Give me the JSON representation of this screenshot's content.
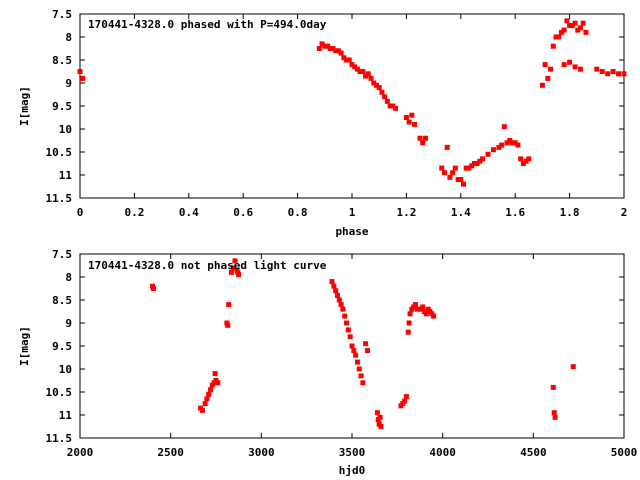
{
  "chart_data": [
    {
      "type": "scatter",
      "title": "170441-4328.0 phased with P=494.0day",
      "xlabel": "phase",
      "ylabel": "I[mag]",
      "xlim": [
        0,
        2
      ],
      "ylim": [
        7.5,
        11.5
      ],
      "y_inverted": true,
      "x_ticks": [
        0,
        0.2,
        0.4,
        0.6,
        0.8,
        1,
        1.2,
        1.4,
        1.6,
        1.8,
        2
      ],
      "x_tick_labels": [
        "0",
        "0.2",
        "0.4",
        "0.6",
        "0.8",
        "1",
        "1.2",
        "1.4",
        "1.6",
        "1.8",
        "2"
      ],
      "y_ticks": [
        7.5,
        8,
        8.5,
        9,
        9.5,
        10,
        10.5,
        11,
        11.5
      ],
      "y_tick_labels": [
        "7.5",
        "8",
        "8.5",
        "9",
        "9.5",
        "10",
        "10.5",
        "11",
        "11.5"
      ],
      "grid": false,
      "marker_color": "#ff0000",
      "series": [
        {
          "x": [
            0.0,
            0.01,
            0.88,
            0.89,
            0.9,
            0.91,
            0.92,
            0.93,
            0.94,
            0.95,
            0.96,
            0.97,
            0.98,
            0.99,
            1.0,
            1.01,
            1.02,
            1.03,
            1.04,
            1.05,
            1.06,
            1.07,
            1.08,
            1.09,
            1.1,
            1.11,
            1.12,
            1.13,
            1.14,
            1.15,
            1.16,
            1.2,
            1.21,
            1.22,
            1.23,
            1.25,
            1.26,
            1.27,
            1.33,
            1.34,
            1.35,
            1.36,
            1.37,
            1.38,
            1.39,
            1.4,
            1.41,
            1.42,
            1.43,
            1.44,
            1.45,
            1.46,
            1.47,
            1.48,
            1.5,
            1.52,
            1.54,
            1.55,
            1.56,
            1.57,
            1.58,
            1.59,
            1.6,
            1.61,
            1.62,
            1.63,
            1.64,
            1.65,
            1.7,
            1.71,
            1.72,
            1.73,
            1.74,
            1.75,
            1.76,
            1.77,
            1.78,
            1.79,
            1.8,
            1.81,
            1.82,
            1.83,
            1.84,
            1.85,
            1.86,
            1.78,
            1.8,
            1.82,
            1.84,
            1.9,
            1.92,
            1.94,
            1.96,
            1.98,
            2.0
          ],
          "y": [
            8.75,
            8.9,
            8.25,
            8.15,
            8.2,
            8.2,
            8.25,
            8.25,
            8.3,
            8.3,
            8.35,
            8.45,
            8.5,
            8.5,
            8.6,
            8.65,
            8.7,
            8.75,
            8.75,
            8.85,
            8.8,
            8.9,
            9.0,
            9.05,
            9.1,
            9.2,
            9.3,
            9.4,
            9.5,
            9.5,
            9.55,
            9.75,
            9.85,
            9.7,
            9.9,
            10.2,
            10.3,
            10.2,
            10.85,
            10.95,
            10.4,
            11.05,
            10.95,
            10.85,
            11.1,
            11.1,
            11.2,
            10.85,
            10.85,
            10.8,
            10.75,
            10.75,
            10.7,
            10.65,
            10.55,
            10.45,
            10.4,
            10.35,
            9.95,
            10.3,
            10.25,
            10.3,
            10.3,
            10.35,
            10.65,
            10.75,
            10.7,
            10.65,
            9.05,
            8.6,
            8.9,
            8.7,
            8.2,
            8.0,
            8.0,
            7.9,
            7.85,
            7.65,
            7.75,
            7.75,
            7.7,
            7.85,
            7.8,
            7.7,
            7.9,
            8.6,
            8.55,
            8.65,
            8.7,
            8.7,
            8.75,
            8.8,
            8.75,
            8.8,
            8.8
          ]
        }
      ]
    },
    {
      "type": "scatter",
      "title": "170441-4328.0 not phased light curve",
      "xlabel": "hjd0",
      "ylabel": "I[mag]",
      "xlim": [
        2000,
        5000
      ],
      "ylim": [
        7.5,
        11.5
      ],
      "y_inverted": true,
      "x_ticks": [
        2000,
        2500,
        3000,
        3500,
        4000,
        4500,
        5000
      ],
      "x_tick_labels": [
        "2000",
        "2500",
        "3000",
        "3500",
        "4000",
        "4500",
        "5000"
      ],
      "y_ticks": [
        7.5,
        8,
        8.5,
        9,
        9.5,
        10,
        10.5,
        11,
        11.5
      ],
      "y_tick_labels": [
        "7.5",
        "8",
        "8.5",
        "9",
        "9.5",
        "10",
        "10.5",
        "11",
        "11.5"
      ],
      "grid": false,
      "marker_color": "#ff0000",
      "series": [
        {
          "x": [
            2400,
            2405,
            2665,
            2675,
            2690,
            2700,
            2710,
            2720,
            2730,
            2740,
            2745,
            2750,
            2760,
            2810,
            2815,
            2820,
            2835,
            2845,
            2855,
            2865,
            2870,
            2875,
            3390,
            3400,
            3410,
            3420,
            3430,
            3440,
            3450,
            3460,
            3470,
            3480,
            3490,
            3500,
            3510,
            3520,
            3530,
            3540,
            3550,
            3560,
            3575,
            3585,
            3640,
            3645,
            3650,
            3655,
            3660,
            3770,
            3780,
            3790,
            3800,
            3810,
            3815,
            3820,
            3830,
            3840,
            3850,
            3860,
            3880,
            3890,
            3900,
            3910,
            3920,
            3930,
            3940,
            3950,
            4610,
            4615,
            4620,
            4720
          ],
          "y": [
            8.2,
            8.25,
            10.85,
            10.9,
            10.75,
            10.65,
            10.55,
            10.45,
            10.35,
            10.3,
            10.1,
            10.25,
            10.3,
            9.0,
            9.05,
            8.6,
            7.9,
            7.8,
            7.65,
            7.85,
            7.9,
            7.95,
            8.1,
            8.2,
            8.3,
            8.4,
            8.5,
            8.6,
            8.7,
            8.85,
            9.0,
            9.15,
            9.3,
            9.5,
            9.6,
            9.7,
            9.85,
            10.0,
            10.15,
            10.3,
            9.45,
            9.6,
            10.95,
            11.1,
            11.2,
            11.05,
            11.25,
            10.8,
            10.75,
            10.7,
            10.6,
            9.2,
            9.0,
            8.8,
            8.7,
            8.65,
            8.6,
            8.7,
            8.7,
            8.65,
            8.75,
            8.8,
            8.7,
            8.75,
            8.8,
            8.85,
            10.4,
            10.95,
            11.05,
            9.95
          ]
        }
      ]
    }
  ]
}
